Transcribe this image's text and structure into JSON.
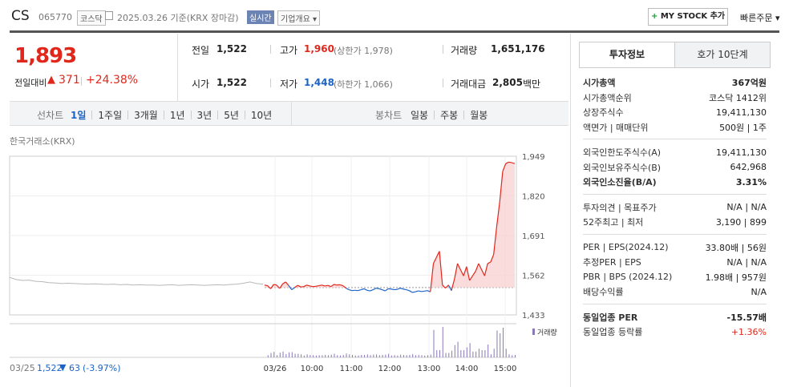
{
  "header": {
    "ticker": "CS",
    "code": "065770",
    "market_badge": "코스닥",
    "date_text": "2025.03.26 기준(KRX 장마감)",
    "realtime_badge": "실시간",
    "company_info_label": "기업개요",
    "mystock_label": "MY STOCK 추가",
    "quick_order_label": "빠른주문"
  },
  "price": {
    "current": "1,893",
    "change_label": "전일대비",
    "change_value": "371",
    "change_pct": "+24.38%"
  },
  "summary": {
    "prev_close_label": "전일",
    "prev_close": "1,522",
    "high_label": "고가",
    "high": "1,960",
    "upper_limit": "(상한가 1,978)",
    "volume_label": "거래량",
    "volume": "1,651,176",
    "open_label": "시가",
    "open": "1,522",
    "low_label": "저가",
    "low": "1,448",
    "lower_limit": "(하한가 1,066)",
    "amount_label": "거래대금",
    "amount": "2,805",
    "amount_unit": "백만"
  },
  "chart_tabs": {
    "line_label": "선차트",
    "line_items": [
      "1일",
      "1주일",
      "3개월",
      "1년",
      "3년",
      "5년",
      "10년"
    ],
    "candle_label": "봉차트",
    "candle_items": [
      "일봉",
      "주봉",
      "월봉"
    ]
  },
  "chart_data": {
    "type": "line",
    "source": "한국거래소(KRX)",
    "y_ticks": [
      "1,949",
      "1,820",
      "1,691",
      "1,562",
      "1,433"
    ],
    "ylim": [
      1433,
      1949
    ],
    "baseline": 1522,
    "x_ticks": [
      "03/26",
      "10:00",
      "11:00",
      "12:00",
      "13:00",
      "14:00",
      "15:00"
    ],
    "prev_day_label": "03/25",
    "prev_day_close": "1,522",
    "prev_day_change": "63",
    "prev_day_pct": "(-3.97%)",
    "volume_legend": "거래량",
    "prev_day_series": [
      1555,
      1548,
      1545,
      1546,
      1542,
      1541,
      1538,
      1537,
      1535,
      1536,
      1535,
      1534,
      1533,
      1534,
      1533,
      1532,
      1533,
      1531,
      1532,
      1530,
      1531,
      1530,
      1530,
      1529,
      1530,
      1531,
      1529,
      1530,
      1531,
      1530,
      1529,
      1530,
      1531,
      1530,
      1532,
      1533,
      1536,
      1540,
      1535,
      1533
    ],
    "today_series": [
      1530,
      1528,
      1518,
      1532,
      1530,
      1519,
      1534,
      1540,
      1528,
      1515,
      1522,
      1529,
      1524,
      1525,
      1530,
      1527,
      1525,
      1526,
      1528,
      1530,
      1527,
      1529,
      1525,
      1532,
      1530,
      1531,
      1528,
      1520,
      1515,
      1512,
      1513,
      1512,
      1515,
      1518,
      1513,
      1511,
      1515,
      1520,
      1518,
      1515,
      1511,
      1518,
      1517,
      1515,
      1516,
      1520,
      1517,
      1515,
      1512,
      1506,
      1508,
      1511,
      1509,
      1510,
      1512,
      1508,
      1600,
      1620,
      1640,
      1530,
      1520,
      1530,
      1512,
      1550,
      1600,
      1580,
      1560,
      1590,
      1545,
      1560,
      1575,
      1600,
      1580,
      1560,
      1600,
      1605,
      1630,
      1720,
      1800,
      1900,
      1925,
      1930,
      1928,
      1925
    ]
  },
  "right_tabs": [
    "투자정보",
    "호가 10단계"
  ],
  "invest": {
    "market_cap_label": "시가총액",
    "market_cap": "367억원",
    "rank_label": "시가총액순위",
    "rank": "코스닥 1412위",
    "shares_label": "상장주식수",
    "shares": "19,411,130",
    "par_label": "액면가 | 매매단위",
    "par": "500원 | 1주",
    "foreign_limit_label": "외국인한도주식수(A)",
    "foreign_limit": "19,411,130",
    "foreign_hold_label": "외국인보유주식수(B)",
    "foreign_hold": "642,968",
    "foreign_ratio_label": "외국인소진율(B/A)",
    "foreign_ratio": "3.31%",
    "opinion_label": "투자의견 | 목표주가",
    "opinion": "N/A | N/A",
    "week52_label": "52주최고 | 최저",
    "week52": "3,190 | 899",
    "per_label": "PER | EPS(2024.12)",
    "per": "33.80배 | 56원",
    "est_per_label": "추정PER | EPS",
    "est_per": "N/A | N/A",
    "pbr_label": "PBR | BPS (2024.12)",
    "pbr": "1.98배 | 957원",
    "div_label": "배당수익률",
    "div": "N/A",
    "sector_per_label": "동일업종 PER",
    "sector_per": "-15.57배",
    "sector_rate_label": "동일업종 등락률",
    "sector_rate": "+1.36%"
  },
  "colors": {
    "up": "#e1271b",
    "down": "#1c63c8",
    "volume": "#8a78b8"
  }
}
